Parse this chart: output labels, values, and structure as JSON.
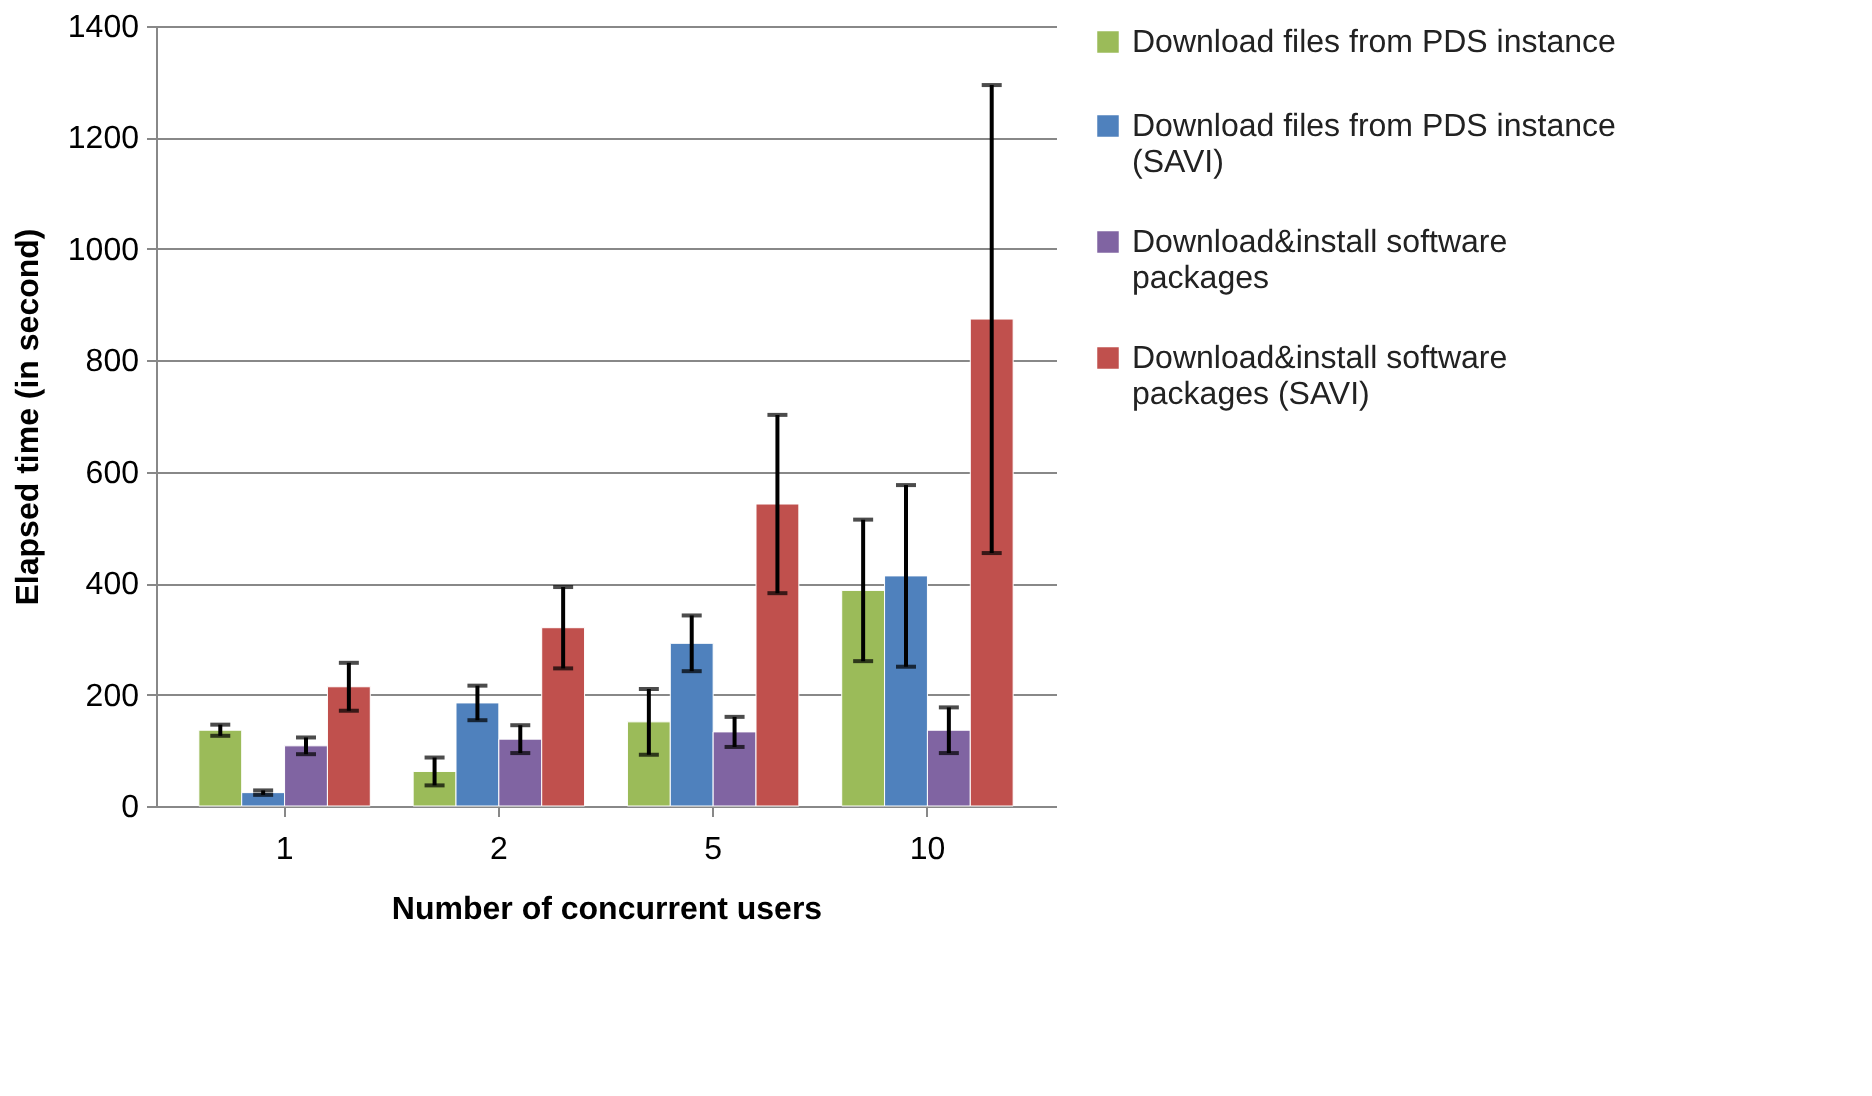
{
  "chart_data": {
    "type": "bar",
    "xlabel": "Number of concurrent users",
    "ylabel": "Elapsed time (in second)",
    "categories": [
      "1",
      "2",
      "5",
      "10"
    ],
    "ylim": [
      0,
      1400
    ],
    "yticks": [
      0,
      200,
      400,
      600,
      800,
      1000,
      1200,
      1400
    ],
    "grid": "y",
    "legend": "right",
    "series": [
      {
        "name": "Download files from PDS instance",
        "color": "#9bbb59",
        "values": [
          136,
          62,
          151,
          387
        ],
        "errors": [
          10,
          25,
          59,
          127
        ]
      },
      {
        "name": "Download files from PDS instance (SAVI)",
        "color": "#4f81bd",
        "values": [
          24,
          185,
          292,
          413
        ],
        "errors": [
          4,
          31,
          50,
          163
        ]
      },
      {
        "name": "Download&install software packages",
        "color": "#8064a2",
        "values": [
          108,
          120,
          133,
          136
        ],
        "errors": [
          15,
          25,
          27,
          41
        ]
      },
      {
        "name": "Download&install software packages (SAVI)",
        "color": "#c0504d",
        "values": [
          214,
          320,
          542,
          874
        ],
        "errors": [
          43,
          73,
          160,
          420
        ]
      }
    ]
  }
}
